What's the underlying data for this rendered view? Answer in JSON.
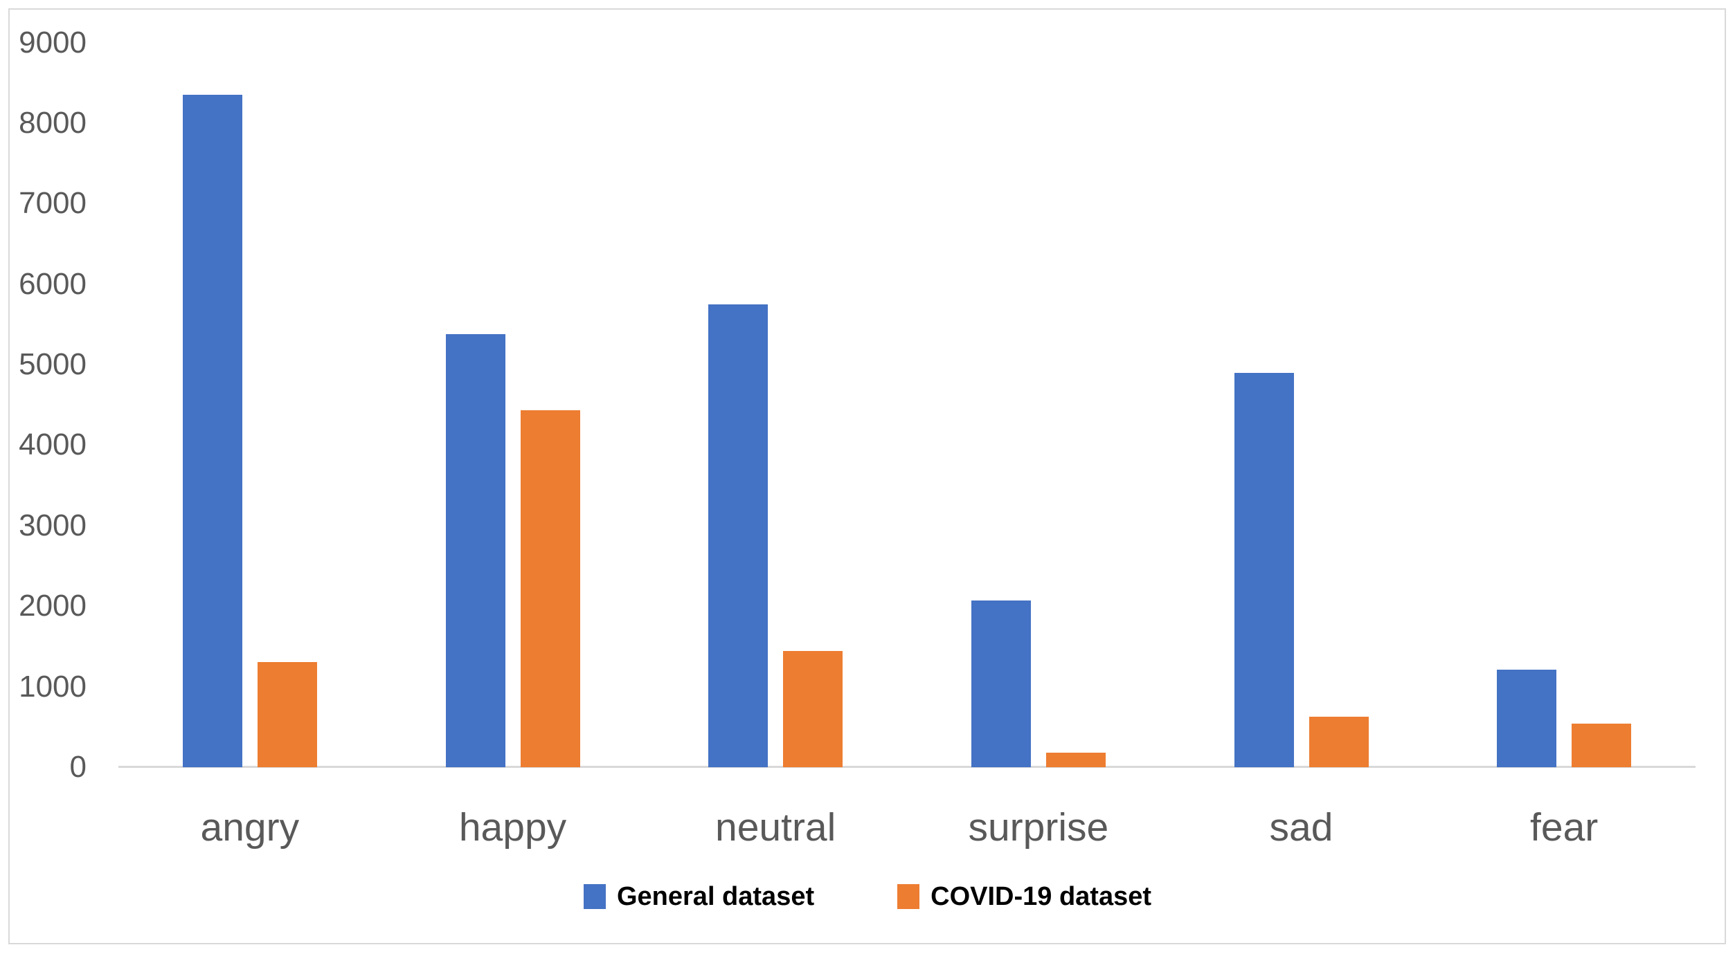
{
  "chart_data": {
    "type": "bar",
    "title": "",
    "xlabel": "",
    "ylabel": "",
    "categories": [
      "angry",
      "happy",
      "neutral",
      "surprise",
      "sad",
      "fear"
    ],
    "series": [
      {
        "name": "General dataset",
        "color": "#4472C4",
        "values": [
          8350,
          5380,
          5750,
          2070,
          4900,
          1210
        ]
      },
      {
        "name": "COVID-19 dataset",
        "color": "#ED7D31",
        "values": [
          1310,
          4430,
          1440,
          180,
          630,
          540
        ]
      }
    ],
    "ylim": [
      0,
      9000
    ],
    "ytick_step": 1000,
    "ytick_labels": [
      "0",
      "1000",
      "2000",
      "3000",
      "4000",
      "5000",
      "6000",
      "7000",
      "8000",
      "9000"
    ],
    "grid": false,
    "legend_position": "bottom",
    "colors": {
      "axis_line": "#D9D9D9",
      "frame_border": "#D9D9D9",
      "tick_label": "#595959",
      "category_label": "#595959",
      "legend_text": "#000000",
      "background": "#FFFFFF"
    }
  }
}
